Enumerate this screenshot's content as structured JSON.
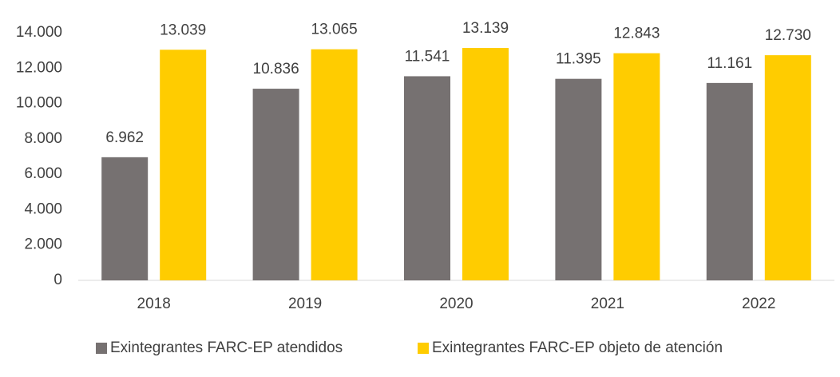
{
  "chart_data": {
    "type": "bar",
    "categories": [
      "2018",
      "2019",
      "2020",
      "2021",
      "2022"
    ],
    "series": [
      {
        "name": "Exintegrantes FARC-EP atendidos",
        "color": "#767171",
        "values": [
          6962,
          10836,
          11541,
          11395,
          11161
        ],
        "value_labels": [
          "6.962",
          "10.836",
          "11.541",
          "11.395",
          "11.161"
        ]
      },
      {
        "name": "Exintegrantes FARC-EP objeto de atención",
        "color": "#ffcc00",
        "values": [
          13039,
          13065,
          13139,
          12843,
          12730
        ],
        "value_labels": [
          "13.039",
          "13.065",
          "13.139",
          "12.843",
          "12.730"
        ]
      }
    ],
    "ylim": [
      0,
      14000
    ],
    "yticks": [
      0,
      {
        "value": 2000,
        "label": "2.000"
      },
      {
        "value": 4000,
        "label": "4.000"
      },
      {
        "value": 6000,
        "label": "6.000"
      },
      {
        "value": 8000,
        "label": "8.000"
      },
      {
        "value": 10000,
        "label": "10.000"
      },
      {
        "value": 12000,
        "label": "12.000"
      },
      {
        "value": 14000,
        "label": "14.000"
      }
    ],
    "grid": false,
    "legend": "bottom"
  }
}
